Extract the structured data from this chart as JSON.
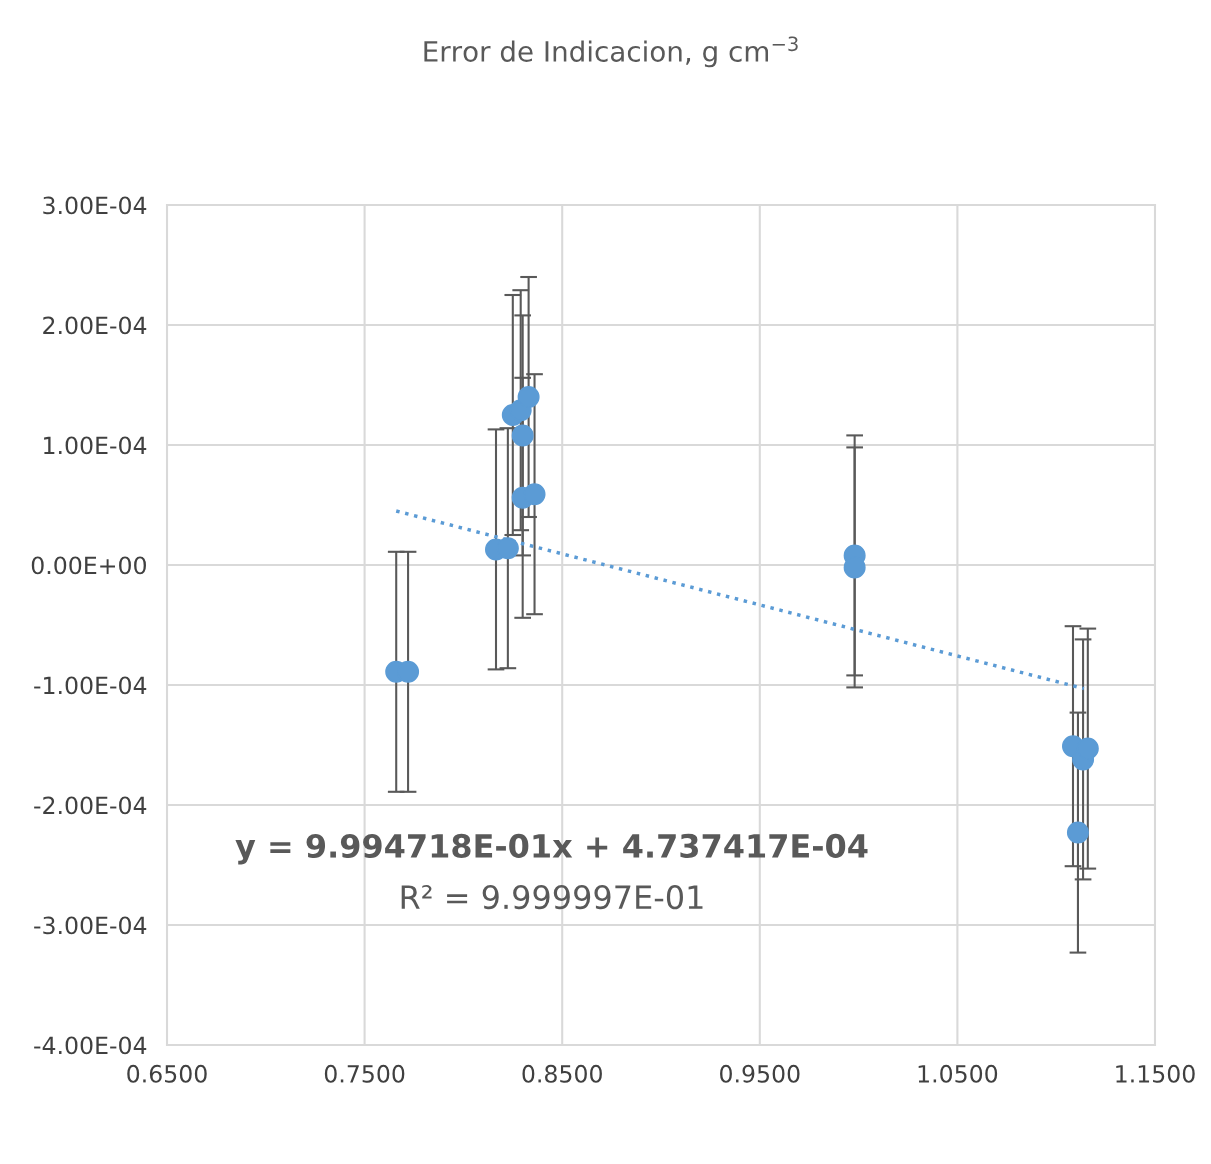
{
  "chart_data": {
    "type": "scatter",
    "title": "Error de Indicacion, g cm$^{−3}$",
    "xlim": [
      0.65,
      1.15
    ],
    "xticks": [
      {
        "value": 0.65,
        "label": "0.6500"
      },
      {
        "value": 0.75,
        "label": "0.7500"
      },
      {
        "value": 0.85,
        "label": "0.8500"
      },
      {
        "value": 0.95,
        "label": "0.9500"
      },
      {
        "value": 1.05,
        "label": "1.0500"
      },
      {
        "value": 1.15,
        "label": "1.1500"
      }
    ],
    "ylim": [
      -0.0004,
      0.0003
    ],
    "yticks": [
      {
        "value": -0.0004,
        "label": "-4.00E-04"
      },
      {
        "value": -0.0003,
        "label": "-3.00E-04"
      },
      {
        "value": -0.0002,
        "label": "-2.00E-04"
      },
      {
        "value": -0.0001,
        "label": "-1.00E-04"
      },
      {
        "value": 0,
        "label": "0.00E+00"
      },
      {
        "value": 0.0001,
        "label": "1.00E-04"
      },
      {
        "value": 0.0002,
        "label": "2.00E-04"
      },
      {
        "value": 0.0003,
        "label": "3.00E-04"
      }
    ],
    "grid": true,
    "legend": false,
    "marker": "circle",
    "series": [
      {
        "color": "#5b9bd5",
        "x": [
          0.766,
          0.772,
          0.8165,
          0.8225,
          0.825,
          0.829,
          0.83,
          0.833,
          0.83,
          0.836,
          0.998,
          0.998,
          1.1085,
          1.111,
          1.1136,
          1.116
        ],
        "values": [
          -8.9e-05,
          -8.9e-05,
          1.3e-05,
          1.4e-05,
          0.000125,
          0.000129,
          0.000108,
          0.00014,
          5.6e-05,
          5.9e-05,
          8e-06,
          -2e-06,
          -0.000151,
          -0.000223,
          -0.000162,
          -0.000153
        ],
        "errors": [
          0.0001,
          0.0001,
          0.0001,
          0.0001,
          0.0001,
          0.0001,
          0.0001,
          0.0001,
          0.0001,
          0.0001,
          0.0001,
          0.0001,
          0.0001,
          0.0001,
          0.0001,
          0.0001
        ]
      },
      {
        "type": "line",
        "color": "#5b9bd5",
        "line_style": "dotted",
        "marker": "none",
        "x": [
          0.766,
          1.114
        ],
        "values": [
          4.5e-05,
          -0.000103
        ]
      }
    ],
    "annotations": [
      "y = 9.994718E-01x + 4.737417E-04",
      "R² = 9.999997E-01"
    ]
  }
}
